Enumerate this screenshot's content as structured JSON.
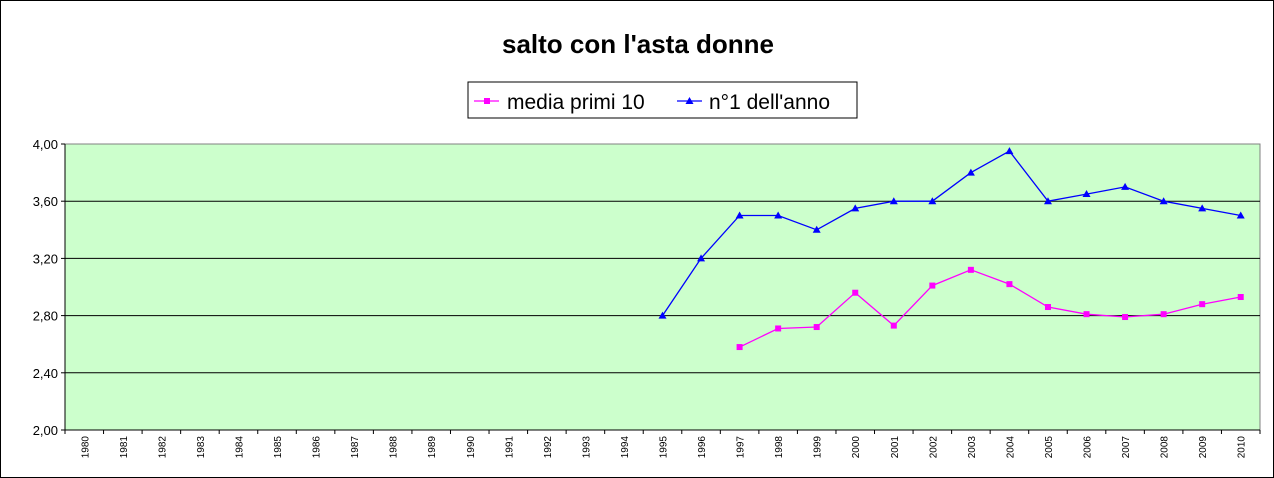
{
  "chart_data": {
    "type": "line",
    "title": "salto con l'asta donne",
    "xlabel": "",
    "ylabel": "",
    "categories": [
      "1980",
      "1981",
      "1982",
      "1983",
      "1984",
      "1985",
      "1986",
      "1987",
      "1988",
      "1989",
      "1990",
      "1991",
      "1992",
      "1993",
      "1994",
      "1995",
      "1996",
      "1997",
      "1998",
      "1999",
      "2000",
      "2001",
      "2002",
      "2003",
      "2004",
      "2005",
      "2006",
      "2007",
      "2008",
      "2009",
      "2010"
    ],
    "ylim": [
      2.0,
      4.0
    ],
    "yticks": [
      "2,00",
      "2,40",
      "2,80",
      "3,20",
      "3,60",
      "4,00"
    ],
    "ytick_values": [
      2.0,
      2.4,
      2.8,
      3.2,
      3.6,
      4.0
    ],
    "grid": "horizontal",
    "legend_position": "top",
    "plot_background": "#ccffcc",
    "series": [
      {
        "name": "media primi 10",
        "color": "#ff00ff",
        "marker": "square",
        "values": [
          null,
          null,
          null,
          null,
          null,
          null,
          null,
          null,
          null,
          null,
          null,
          null,
          null,
          null,
          null,
          null,
          null,
          2.58,
          2.71,
          2.72,
          2.96,
          2.73,
          3.01,
          3.12,
          3.02,
          2.86,
          2.81,
          2.79,
          2.81,
          2.88,
          2.93
        ]
      },
      {
        "name": "n°1 dell'anno",
        "color": "#0000ff",
        "marker": "triangle",
        "values": [
          null,
          null,
          null,
          null,
          null,
          null,
          null,
          null,
          null,
          null,
          null,
          null,
          null,
          null,
          null,
          2.8,
          3.2,
          3.5,
          3.5,
          3.4,
          3.55,
          3.6,
          3.6,
          3.8,
          3.95,
          3.6,
          3.65,
          3.7,
          3.6,
          3.55,
          3.5
        ]
      }
    ]
  }
}
